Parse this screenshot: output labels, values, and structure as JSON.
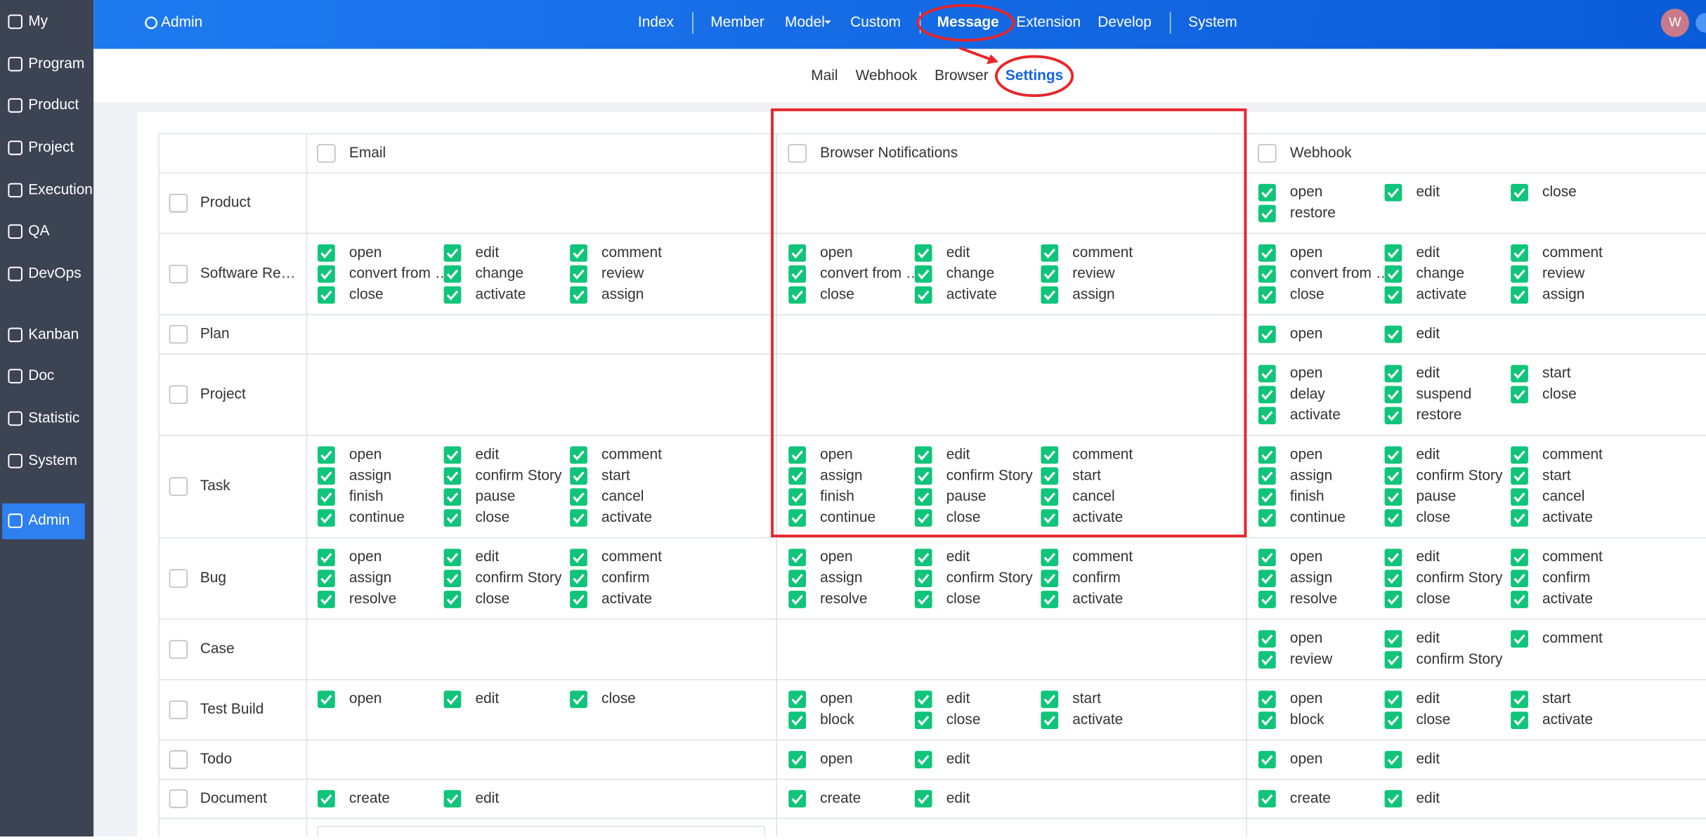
{
  "sidebar": {
    "items": [
      "My",
      "Program",
      "Product",
      "Project",
      "Execution",
      "QA",
      "DevOps",
      "Kanban",
      "Doc",
      "Statistic",
      "System",
      "Admin"
    ]
  },
  "topbar": {
    "admin": "Admin",
    "nav": [
      "Index",
      "Member",
      "Model",
      "Custom",
      "Message",
      "Extension",
      "Develop",
      "System"
    ],
    "avatar": "W"
  },
  "subnav": {
    "items": [
      "Mail",
      "Webhook",
      "Browser",
      "Settings"
    ]
  },
  "table": {
    "headers": [
      "Email",
      "Browser Notifications",
      "Webhook"
    ],
    "rows": [
      {
        "label": "Product",
        "cells": [
          [],
          [],
          [
            "open",
            "edit",
            "close",
            "restore"
          ]
        ]
      },
      {
        "label": "Software Re…",
        "cells": [
          [
            "open",
            "edit",
            "comment",
            "convert from …",
            "change",
            "review",
            "close",
            "activate",
            "assign"
          ],
          [
            "open",
            "edit",
            "comment",
            "convert from …",
            "change",
            "review",
            "close",
            "activate",
            "assign"
          ],
          [
            "open",
            "edit",
            "comment",
            "convert from …",
            "change",
            "review",
            "close",
            "activate",
            "assign"
          ]
        ]
      },
      {
        "label": "Plan",
        "cells": [
          [],
          [],
          [
            "open",
            "edit"
          ]
        ]
      },
      {
        "label": "Project",
        "cells": [
          [],
          [],
          [
            "open",
            "edit",
            "start",
            "delay",
            "suspend",
            "close",
            "activate",
            "restore"
          ]
        ]
      },
      {
        "label": "Task",
        "cells": [
          [
            "open",
            "edit",
            "comment",
            "assign",
            "confirm Story",
            "start",
            "finish",
            "pause",
            "cancel",
            "continue",
            "close",
            "activate"
          ],
          [
            "open",
            "edit",
            "comment",
            "assign",
            "confirm Story",
            "start",
            "finish",
            "pause",
            "cancel",
            "continue",
            "close",
            "activate"
          ],
          [
            "open",
            "edit",
            "comment",
            "assign",
            "confirm Story",
            "start",
            "finish",
            "pause",
            "cancel",
            "continue",
            "close",
            "activate"
          ]
        ]
      },
      {
        "label": "Bug",
        "cells": [
          [
            "open",
            "edit",
            "comment",
            "assign",
            "confirm Story",
            "confirm",
            "resolve",
            "close",
            "activate"
          ],
          [
            "open",
            "edit",
            "comment",
            "assign",
            "confirm Story",
            "confirm",
            "resolve",
            "close",
            "activate"
          ],
          [
            "open",
            "edit",
            "comment",
            "assign",
            "confirm Story",
            "confirm",
            "resolve",
            "close",
            "activate"
          ]
        ]
      },
      {
        "label": "Case",
        "cells": [
          [],
          [],
          [
            "open",
            "edit",
            "comment",
            "review",
            "confirm Story"
          ]
        ]
      },
      {
        "label": "Test Build",
        "cells": [
          [
            "open",
            "edit",
            "close"
          ],
          [
            "open",
            "edit",
            "start",
            "block",
            "close",
            "activate"
          ],
          [
            "open",
            "edit",
            "start",
            "block",
            "close",
            "activate"
          ]
        ]
      },
      {
        "label": "Todo",
        "cells": [
          [],
          [
            "open",
            "edit"
          ],
          [
            "open",
            "edit"
          ]
        ]
      },
      {
        "label": "Document",
        "cells": [
          [
            "create",
            "edit"
          ],
          [
            "create",
            "edit"
          ],
          [
            "create",
            "edit"
          ]
        ]
      }
    ]
  }
}
